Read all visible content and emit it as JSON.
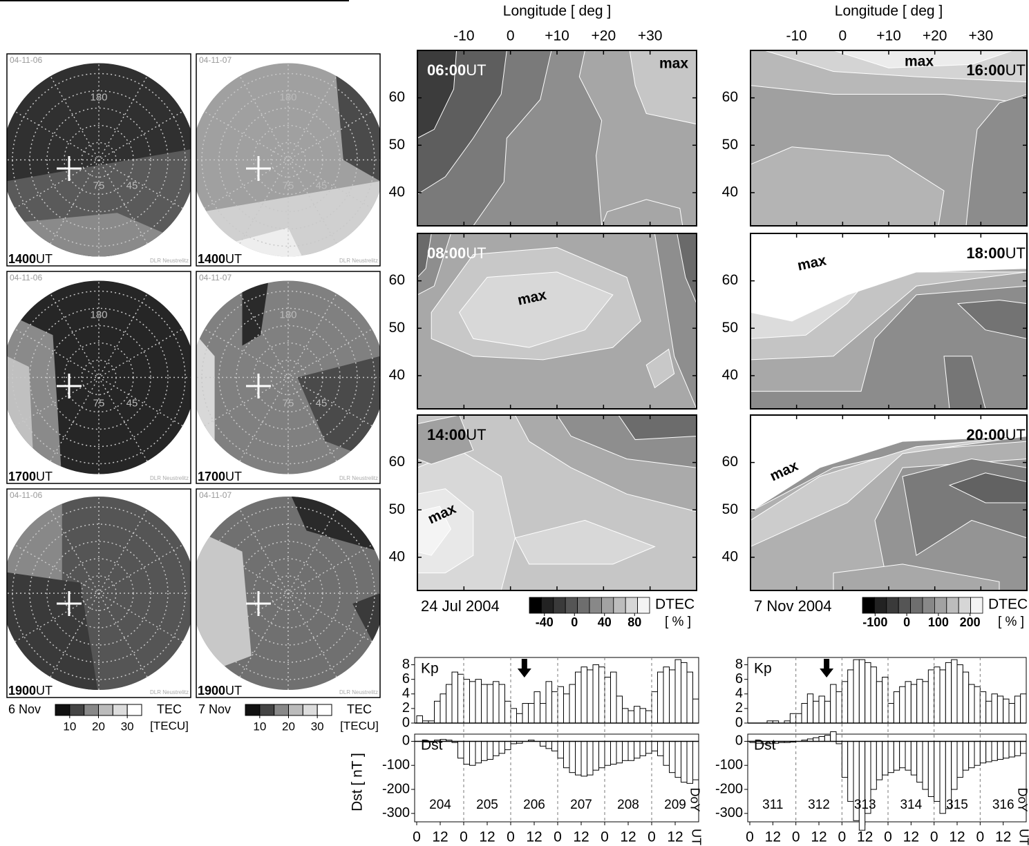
{
  "maps": {
    "time_unit": "UT",
    "credit": "DLR Neustrelitz",
    "grid_labels": [
      "180",
      "75",
      "45"
    ],
    "panels": [
      {
        "date": "04-11-06",
        "time": "1400"
      },
      {
        "date": "04-11-07",
        "time": "1400"
      },
      {
        "date": "04-11-06",
        "time": "1700"
      },
      {
        "date": "04-11-07",
        "time": "1700"
      },
      {
        "date": "04-11-06",
        "time": "1900"
      },
      {
        "date": "04-11-07",
        "time": "1900"
      }
    ],
    "legends": [
      "6 Nov",
      "7 Nov"
    ],
    "colorbar": {
      "label": "TEC",
      "unit": "[TECU]",
      "ticks": [
        10,
        20,
        30
      ],
      "lim": [
        5,
        35
      ],
      "colors": [
        "#111111",
        "#444444",
        "#888888",
        "#bbbbbb",
        "#dddddd",
        "#ffffff"
      ]
    }
  },
  "chart_data": [
    {
      "type": "contour",
      "xlabel": "Longitude [ deg ]",
      "xlim": [
        -20,
        40
      ],
      "xticks": [
        -10,
        0,
        {
          "value": 10,
          "label": "+10"
        },
        {
          "value": 20,
          "label": "+20"
        },
        {
          "value": 30,
          "label": "+30"
        }
      ],
      "ylim": [
        33,
        70
      ],
      "yticks": [
        40,
        50,
        60
      ],
      "time_unit": "UT",
      "panels": [
        {
          "time": "06:00",
          "annotation": "max"
        },
        {
          "time": "08:00",
          "annotation": "max"
        },
        {
          "time": "14:00",
          "annotation": "max"
        }
      ],
      "date": "24 Jul 2004",
      "colorbar": {
        "label": "DTEC",
        "unit": "[ % ]",
        "lim": [
          -60,
          100
        ],
        "ticks": [
          -40,
          0,
          40,
          80
        ],
        "colors": [
          "#000000",
          "#222222",
          "#3a3a3a",
          "#555555",
          "#6e6e6e",
          "#888888",
          "#a2a2a2",
          "#bcbcbc",
          "#d6d6d6",
          "#f4f4f4"
        ]
      }
    },
    {
      "type": "contour",
      "xlabel": "Longitude [ deg ]",
      "xlim": [
        -20,
        40
      ],
      "xticks": [
        -10,
        0,
        {
          "value": 10,
          "label": "+10"
        },
        {
          "value": 20,
          "label": "+20"
        },
        {
          "value": 30,
          "label": "+30"
        }
      ],
      "ylim": [
        33,
        70
      ],
      "yticks": [
        40,
        50,
        60
      ],
      "time_unit": "UT",
      "panels": [
        {
          "time": "16:00",
          "annotation": "max"
        },
        {
          "time": "18:00",
          "annotation": "max"
        },
        {
          "time": "20:00",
          "annotation": "max"
        }
      ],
      "date": "7 Nov 2004",
      "colorbar": {
        "label": "DTEC",
        "unit": "[ % ]",
        "lim": [
          -140,
          240
        ],
        "ticks": [
          -100,
          0,
          100,
          200
        ],
        "colors": [
          "#000000",
          "#222222",
          "#3a3a3a",
          "#555555",
          "#6e6e6e",
          "#888888",
          "#a2a2a2",
          "#bcbcbc",
          "#d6d6d6",
          "#f4f4f4"
        ]
      }
    },
    {
      "type": "bar",
      "name": "Kp",
      "xlim": [
        0,
        144
      ],
      "ylim": [
        0,
        9
      ],
      "yticks": [
        0,
        2,
        4,
        6,
        8
      ],
      "arrow_x": 55,
      "color": "#ffffff",
      "edgecolor": "#000000",
      "x": [
        0,
        3,
        6,
        9,
        12,
        15,
        18,
        21,
        24,
        27,
        30,
        33,
        36,
        39,
        42,
        45,
        48,
        51,
        54,
        57,
        60,
        63,
        66,
        69,
        72,
        75,
        78,
        81,
        84,
        87,
        90,
        93,
        96,
        99,
        102,
        105,
        108,
        111,
        114,
        117,
        120,
        123,
        126,
        129,
        132,
        135,
        138,
        141
      ],
      "values": [
        1,
        0.3,
        0.3,
        3,
        4,
        5.3,
        7,
        6.7,
        6,
        5.7,
        6,
        5.3,
        5.3,
        5.7,
        5.3,
        3,
        2,
        1.3,
        2.7,
        2.7,
        4.3,
        2.7,
        5.7,
        4.3,
        5,
        4,
        5.3,
        7,
        7.7,
        7.3,
        8,
        7.7,
        6.3,
        7,
        3.7,
        2,
        1.7,
        2.3,
        2,
        1.7,
        4.3,
        7,
        7.7,
        7.3,
        8.7,
        8.3,
        7,
        3.3
      ]
    },
    {
      "type": "bar",
      "name": "Dst",
      "ylabel": "Dst [ nT ]",
      "xlabel": "UT",
      "doy_label": "DoY",
      "xlim": [
        0,
        144
      ],
      "ylim": [
        -335,
        30
      ],
      "yticks": [
        0,
        -100,
        -200,
        -300
      ],
      "xticks": [
        0,
        12,
        {
          "value": 24,
          "label": "0"
        },
        {
          "value": 36,
          "label": "12"
        },
        {
          "value": 48,
          "label": "0"
        },
        {
          "value": 60,
          "label": "12"
        },
        {
          "value": 72,
          "label": "0"
        },
        {
          "value": 84,
          "label": "12"
        },
        {
          "value": 96,
          "label": "0"
        },
        {
          "value": 108,
          "label": "12"
        },
        {
          "value": 120,
          "label": "0"
        },
        {
          "value": 132,
          "label": "12"
        }
      ],
      "day_labels": [
        "204",
        "205",
        "206",
        "207",
        "208",
        "209"
      ],
      "color": "#ffffff",
      "edgecolor": "#000000",
      "x": [
        0,
        3,
        6,
        9,
        12,
        15,
        18,
        21,
        24,
        27,
        30,
        33,
        36,
        39,
        42,
        45,
        48,
        51,
        54,
        57,
        60,
        63,
        66,
        69,
        72,
        75,
        78,
        81,
        84,
        87,
        90,
        93,
        96,
        99,
        102,
        105,
        108,
        111,
        114,
        117,
        120,
        123,
        126,
        129,
        132,
        135,
        138,
        141
      ],
      "values": [
        0,
        -3,
        -3,
        5,
        8,
        5,
        -5,
        -70,
        -95,
        -100,
        -90,
        -80,
        -75,
        -60,
        -50,
        -35,
        -10,
        -8,
        0,
        5,
        0,
        -20,
        -30,
        -40,
        -70,
        -110,
        -130,
        -140,
        -145,
        -140,
        -120,
        -110,
        -100,
        -95,
        -90,
        -80,
        -80,
        -70,
        -60,
        -50,
        -40,
        -60,
        -100,
        -130,
        -150,
        -170,
        -175,
        -160
      ]
    },
    {
      "type": "bar",
      "name": "Kp",
      "xlim": [
        0,
        144
      ],
      "ylim": [
        0,
        9
      ],
      "yticks": [
        0,
        2,
        4,
        6,
        8
      ],
      "arrow_x": 40,
      "color": "#ffffff",
      "edgecolor": "#000000",
      "x": [
        0,
        3,
        6,
        9,
        12,
        15,
        18,
        21,
        24,
        27,
        30,
        33,
        36,
        39,
        42,
        45,
        48,
        51,
        54,
        57,
        60,
        63,
        66,
        69,
        72,
        75,
        78,
        81,
        84,
        87,
        90,
        93,
        96,
        99,
        102,
        105,
        108,
        111,
        114,
        117,
        120,
        123,
        126,
        129,
        132,
        135,
        138,
        141
      ],
      "values": [
        0,
        0,
        0,
        0.3,
        0.3,
        0,
        0.3,
        1.3,
        1.3,
        2.7,
        4,
        3,
        3.7,
        3,
        5.3,
        4.3,
        5.7,
        7.3,
        8.7,
        8.7,
        8.3,
        7.7,
        5.7,
        6.3,
        2.7,
        4.3,
        5,
        5.7,
        5.3,
        6,
        5.7,
        7.3,
        7.7,
        7.3,
        8.3,
        8.7,
        8,
        7,
        5.3,
        5,
        4.3,
        3,
        4,
        3.7,
        3.3,
        2.7,
        3.7,
        4
      ]
    },
    {
      "type": "bar",
      "name": "Dst",
      "xlabel": "UT",
      "doy_label": "DoY",
      "xlim": [
        0,
        144
      ],
      "ylim": [
        -335,
        30
      ],
      "yticks": [
        0,
        -100,
        -200,
        -300
      ],
      "xticks": [
        0,
        12,
        {
          "value": 24,
          "label": "0"
        },
        {
          "value": 36,
          "label": "12"
        },
        {
          "value": 48,
          "label": "0"
        },
        {
          "value": 60,
          "label": "12"
        },
        {
          "value": 72,
          "label": "0"
        },
        {
          "value": 84,
          "label": "12"
        },
        {
          "value": 96,
          "label": "0"
        },
        {
          "value": 108,
          "label": "12"
        },
        {
          "value": 120,
          "label": "0"
        },
        {
          "value": 132,
          "label": "12"
        }
      ],
      "day_labels": [
        "311",
        "312",
        "313",
        "314",
        "315",
        "316"
      ],
      "color": "#ffffff",
      "edgecolor": "#000000",
      "x": [
        0,
        3,
        6,
        9,
        12,
        15,
        18,
        21,
        24,
        27,
        30,
        33,
        36,
        39,
        42,
        45,
        48,
        51,
        54,
        57,
        60,
        63,
        66,
        69,
        72,
        75,
        78,
        81,
        84,
        87,
        90,
        93,
        96,
        99,
        102,
        105,
        108,
        111,
        114,
        117,
        120,
        123,
        126,
        129,
        132,
        135,
        138,
        141
      ],
      "values": [
        -5,
        -8,
        -10,
        -10,
        -8,
        -5,
        -5,
        -3,
        0,
        5,
        10,
        15,
        20,
        25,
        40,
        -10,
        -150,
        -250,
        -330,
        -370,
        -300,
        -200,
        -160,
        -140,
        -130,
        -120,
        -110,
        -120,
        -140,
        -170,
        -200,
        -230,
        -250,
        -300,
        -280,
        -200,
        -150,
        -120,
        -110,
        -100,
        -90,
        -85,
        -80,
        -75,
        -70,
        -65,
        -60,
        -50
      ]
    }
  ]
}
